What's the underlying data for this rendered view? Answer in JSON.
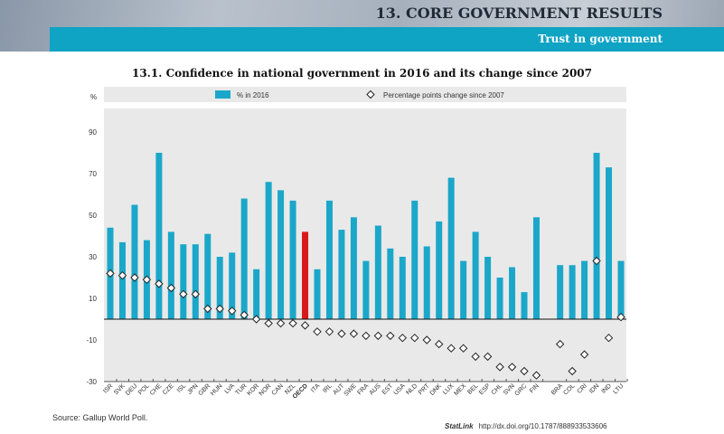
{
  "header": {
    "section_title": "13. CORE GOVERNMENT RESULTS",
    "subtitle": "Trust in government"
  },
  "footer": {
    "source": "Source: Gallup World Poll.",
    "statlink_label": "StatLink",
    "statlink_url": "http://dx.doi.org/10.1787/888933533606"
  },
  "colors": {
    "bar": "#1ba7c9",
    "highlight": "#d7191c",
    "plot_bg": "#e9e9e9"
  },
  "chart_data": {
    "type": "bar",
    "title": "13.1. Confidence in national government in 2016 and its change since 2007",
    "ylabel": "%",
    "ylim": [
      -30,
      100
    ],
    "yticks": [
      90,
      70,
      50,
      30,
      10,
      -10,
      -30
    ],
    "legend_position": "top",
    "highlight": "OECD",
    "gap_after": "FIN",
    "categories": [
      "ISR",
      "SVK",
      "DEU",
      "POL",
      "CHE",
      "CZE",
      "ISL",
      "JPN",
      "GBR",
      "HUN",
      "LVA",
      "TUR",
      "KOR",
      "NOR",
      "CAN",
      "NZL",
      "OECD",
      "ITA",
      "IRL",
      "AUT",
      "SWE",
      "FRA",
      "AUS",
      "EST",
      "USA",
      "NLD",
      "PRT",
      "DNK",
      "LUX",
      "MEX",
      "BEL",
      "ESP",
      "CHL",
      "SVN",
      "GRC",
      "FIN",
      "BRA",
      "COL",
      "CRI",
      "IDN",
      "IND",
      "LTU"
    ],
    "series": [
      {
        "name": "% in 2016",
        "type": "bar",
        "values": [
          44,
          37,
          55,
          38,
          80,
          42,
          36,
          36,
          41,
          30,
          32,
          58,
          24,
          66,
          62,
          57,
          42,
          24,
          57,
          43,
          49,
          28,
          45,
          34,
          30,
          57,
          35,
          47,
          68,
          28,
          42,
          30,
          20,
          25,
          13,
          49,
          26,
          26,
          28,
          80,
          73,
          28
        ]
      },
      {
        "name": "Percentage points change since 2007",
        "type": "scatter",
        "values": [
          22,
          21,
          20,
          19,
          17,
          15,
          12,
          12,
          5,
          5,
          4,
          2,
          0,
          -2,
          -2,
          -2,
          -3,
          -6,
          -6,
          -7,
          -7,
          -8,
          -8,
          -8,
          -9,
          -9,
          -10,
          -12,
          -14,
          -14,
          -18,
          -18,
          -23,
          -23,
          -25,
          -27,
          -12,
          -25,
          -17,
          28,
          -9,
          1
        ]
      }
    ]
  }
}
